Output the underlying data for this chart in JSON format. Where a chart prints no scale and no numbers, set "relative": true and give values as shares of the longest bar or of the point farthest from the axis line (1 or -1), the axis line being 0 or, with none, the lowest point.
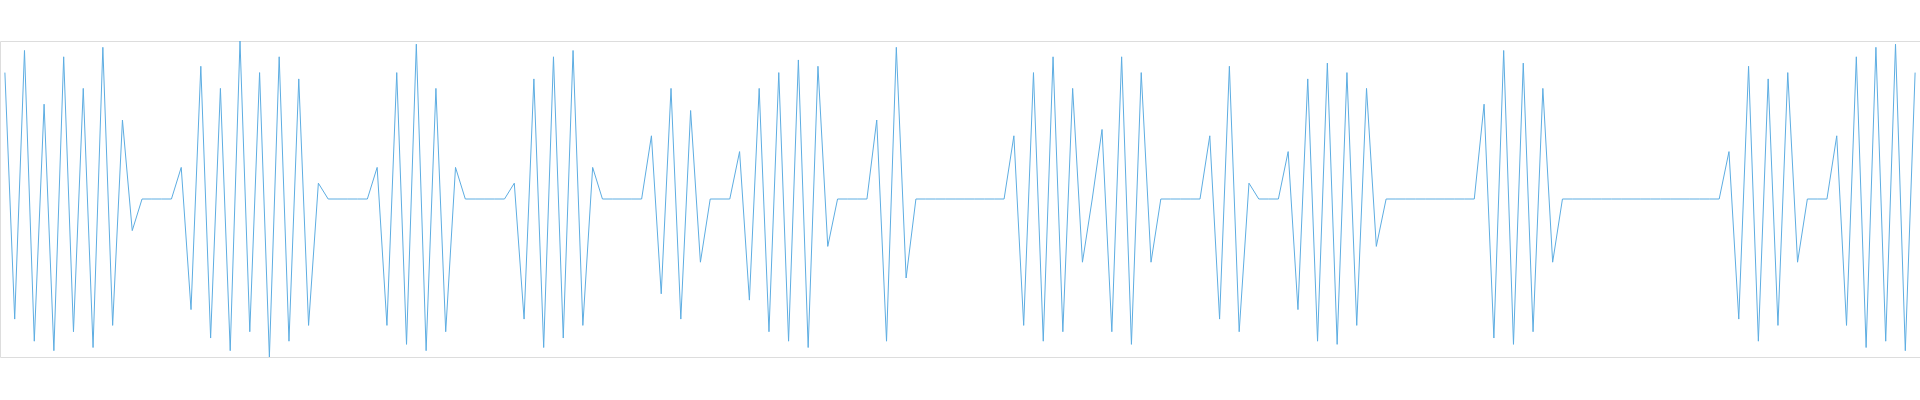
{
  "chart_data": {
    "type": "line",
    "relative": true,
    "tick_labels": false,
    "marker": "none",
    "line_style": "solid",
    "categories": [
      null,
      null,
      null,
      null,
      null,
      null,
      null,
      null,
      null,
      null,
      null,
      null,
      null,
      null,
      null,
      null,
      null,
      null,
      null,
      null,
      null,
      null,
      null,
      null,
      null,
      null,
      null,
      null,
      null,
      null,
      null,
      null,
      null,
      null,
      null,
      null,
      null,
      null,
      null,
      null,
      null,
      null,
      null,
      null,
      null,
      null,
      null,
      null,
      null,
      null,
      null,
      null,
      null,
      null,
      null,
      null,
      null,
      null,
      null,
      null,
      null,
      null,
      null,
      null,
      null,
      null,
      null,
      null,
      null,
      null,
      null,
      null,
      null,
      null,
      null,
      null,
      null,
      null,
      null,
      null,
      null,
      null,
      null,
      null,
      null,
      null,
      null,
      null,
      null,
      null,
      null,
      null,
      null,
      null,
      null,
      null,
      null,
      null,
      null,
      null,
      null,
      null,
      null,
      null,
      null,
      null,
      null,
      null,
      null,
      null,
      null,
      null,
      null,
      null,
      null,
      null,
      null,
      null,
      null,
      null,
      null,
      null,
      null,
      null,
      null,
      null,
      null,
      null,
      null,
      null,
      null,
      null,
      null,
      null,
      null,
      null,
      null,
      null,
      null,
      null,
      null,
      null,
      null,
      null,
      null,
      null,
      null,
      null,
      null,
      null,
      null,
      null,
      null,
      null,
      null,
      null,
      null,
      null,
      null,
      null,
      null,
      null,
      null,
      null,
      null,
      null,
      null,
      null,
      null,
      null,
      null,
      null,
      null,
      null,
      null,
      null,
      null,
      null,
      null,
      null,
      null,
      null,
      null,
      null,
      null,
      null,
      null,
      null,
      null,
      null,
      null,
      null,
      null,
      null,
      null,
      null
    ],
    "series": [
      {
        "color": "#5dade2",
        "values": [
          0.9,
          0.12,
          0.97,
          0.05,
          0.8,
          0.02,
          0.95,
          0.08,
          0.85,
          0.03,
          0.98,
          0.1,
          0.75,
          0.4,
          0.5,
          0.5,
          0.5,
          0.5,
          0.6,
          0.15,
          0.92,
          0.06,
          0.85,
          0.02,
          1,
          0.08,
          0.9,
          0.0,
          0.95,
          0.05,
          0.88,
          0.1,
          0.55,
          0.5,
          0.5,
          0.5,
          0.5,
          0.5,
          0.6,
          0.1,
          0.9,
          0.04,
          0.99,
          0.02,
          0.85,
          0.08,
          0.6,
          0.5,
          0.5,
          0.5,
          0.5,
          0.5,
          0.55,
          0.12,
          0.88,
          0.03,
          0.95,
          0.06,
          0.97,
          0.1,
          0.6,
          0.5,
          0.5,
          0.5,
          0.5,
          0.5,
          0.7,
          0.2,
          0.85,
          0.12,
          0.78,
          0.3,
          0.5,
          0.5,
          0.5,
          0.65,
          0.18,
          0.85,
          0.08,
          0.9,
          0.05,
          0.94,
          0.03,
          0.92,
          0.35,
          0.5,
          0.5,
          0.5,
          0.5,
          0.75,
          0.05,
          0.98,
          0.25,
          0.5,
          0.5,
          0.5,
          0.5,
          0.5,
          0.5,
          0.5,
          0.5,
          0.5,
          0.5,
          0.7,
          0.1,
          0.9,
          0.05,
          0.95,
          0.08,
          0.85,
          0.3,
          0.5,
          0.72,
          0.08,
          0.95,
          0.04,
          0.9,
          0.3,
          0.5,
          0.5,
          0.5,
          0.5,
          0.5,
          0.7,
          0.12,
          0.92,
          0.08,
          0.55,
          0.5,
          0.5,
          0.5,
          0.65,
          0.15,
          0.88,
          0.05,
          0.93,
          0.04,
          0.9,
          0.1,
          0.85,
          0.35,
          0.5,
          0.5,
          0.5,
          0.5,
          0.5,
          0.5,
          0.5,
          0.5,
          0.5,
          0.5,
          0.8,
          0.06,
          0.97,
          0.04,
          0.93,
          0.08,
          0.85,
          0.3,
          0.5,
          0.5,
          0.5,
          0.5,
          0.5,
          0.5,
          0.5,
          0.5,
          0.5,
          0.5,
          0.5,
          0.5,
          0.5,
          0.5,
          0.5,
          0.5,
          0.5,
          0.65,
          0.12,
          0.92,
          0.05,
          0.88,
          0.1,
          0.9,
          0.3,
          0.5,
          0.5,
          0.5,
          0.7,
          0.1,
          0.95,
          0.03,
          0.98,
          0.05,
          0.99,
          0.02,
          0.9
        ]
      }
    ]
  }
}
